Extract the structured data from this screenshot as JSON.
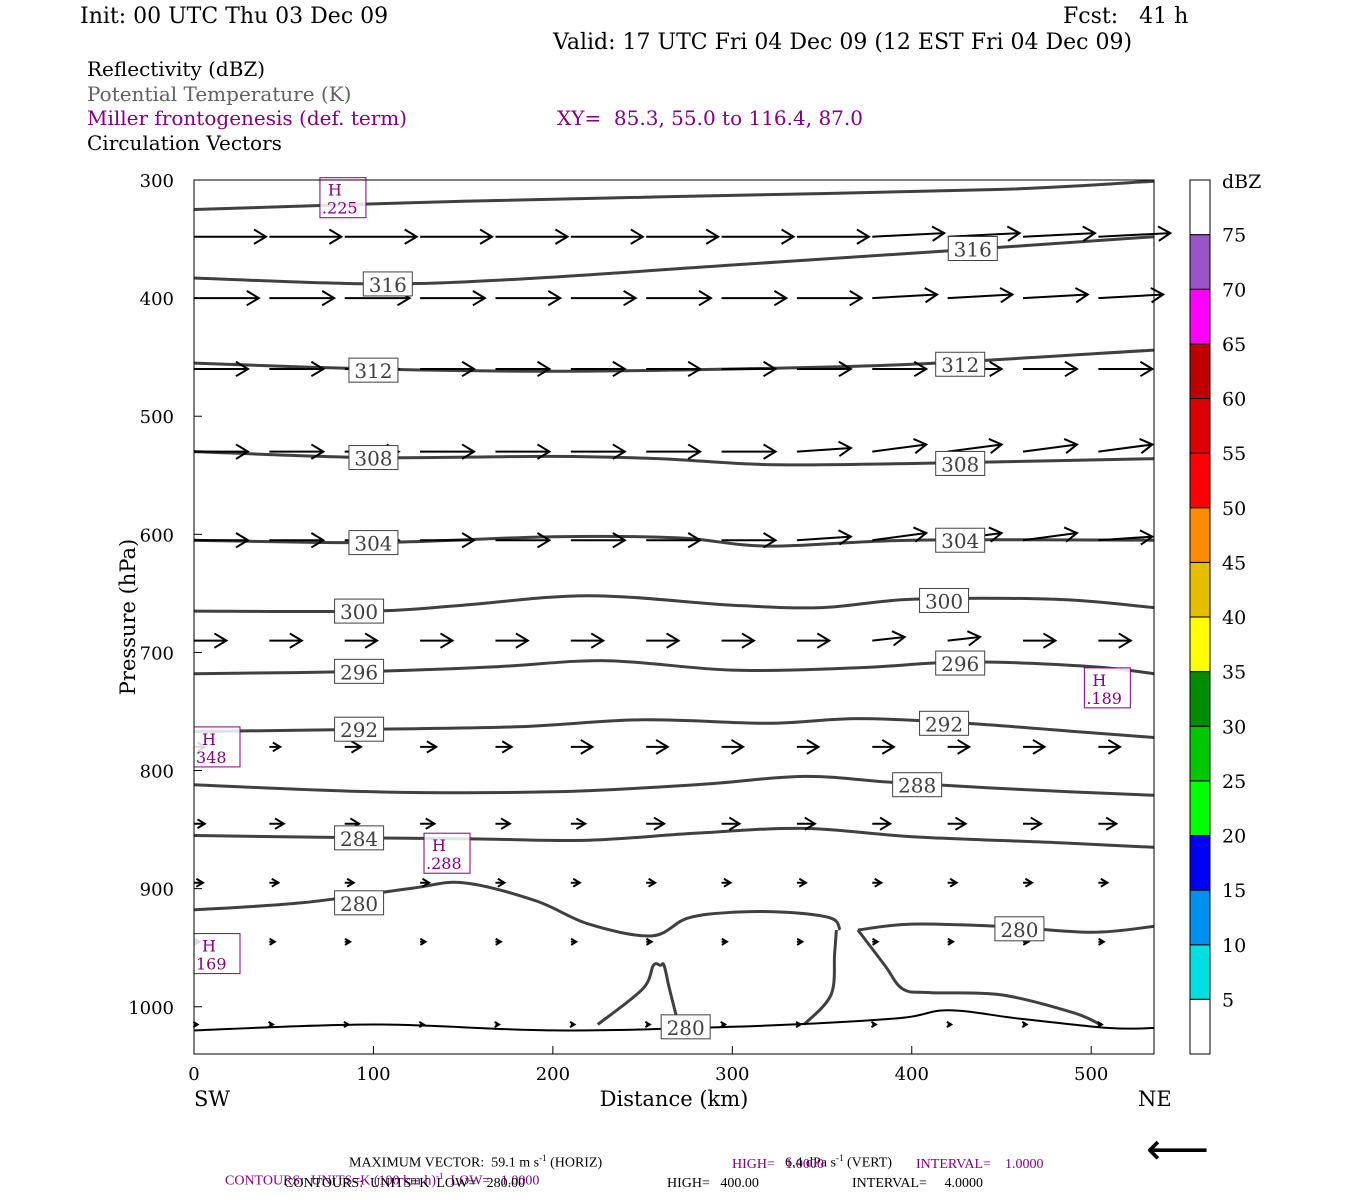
{
  "header": {
    "init": "Init: 00 UTC Thu 03 Dec 09",
    "fcst": "Fcst:   41 h",
    "valid": "Valid: 17 UTC Fri 04 Dec 09 (12 EST Fri 04 Dec 09)",
    "field1": "Reflectivity (dBZ)",
    "field2": "Potential Temperature (K)",
    "field3": "Miller frontogenesis (def. term)",
    "xy": "XY=  85.3, 55.0 to 116.4, 87.0",
    "field4": "Circulation Vectors"
  },
  "colors": {
    "theta": "#404040",
    "fronto": "#800080",
    "vector": "#000000",
    "grey_text": "#606060"
  },
  "chart_data": {
    "type": "cross-section",
    "xlabel": "Distance (km)",
    "ylabel": "Pressure (hPa)",
    "xlim": [
      0,
      535
    ],
    "ylim": [
      300,
      1040
    ],
    "x_ticks": [
      "0",
      "100",
      "200",
      "300",
      "400",
      "500"
    ],
    "y_ticks": [
      "300",
      "400",
      "500",
      "600",
      "700",
      "800",
      "900",
      "1000"
    ],
    "left_end_label": "SW",
    "right_end_label": "NE",
    "theta_contours": [
      {
        "level": 320,
        "label": "",
        "x": [
          0,
          150,
          300,
          450,
          535
        ],
        "p": [
          325,
          318,
          313,
          308,
          301
        ]
      },
      {
        "level": 316,
        "label": "316",
        "x": [
          0,
          100,
          180,
          300,
          420,
          535
        ],
        "p": [
          383,
          388,
          384,
          372,
          360,
          348
        ]
      },
      {
        "level": 312,
        "label": "312",
        "x": [
          0,
          100,
          200,
          300,
          400,
          535
        ],
        "p": [
          455,
          460,
          462,
          460,
          456,
          444
        ]
      },
      {
        "level": 308,
        "label": "308",
        "x": [
          0,
          100,
          200,
          260,
          320,
          400,
          535
        ],
        "p": [
          530,
          535,
          534,
          536,
          541,
          540,
          536
        ]
      },
      {
        "level": 304,
        "label": "304",
        "x": [
          0,
          100,
          200,
          270,
          320,
          400,
          535
        ],
        "p": [
          605,
          607,
          602,
          603,
          610,
          605,
          605
        ]
      },
      {
        "level": 300,
        "label": "300",
        "x": [
          0,
          100,
          150,
          220,
          300,
          350,
          400,
          480,
          535
        ],
        "p": [
          665,
          665,
          660,
          652,
          660,
          662,
          655,
          655,
          662
        ]
      },
      {
        "level": 296,
        "label": "296",
        "x": [
          0,
          100,
          170,
          230,
          300,
          370,
          430,
          500,
          535
        ],
        "p": [
          718,
          716,
          712,
          707,
          715,
          713,
          708,
          712,
          718
        ]
      },
      {
        "level": 292,
        "label": "292",
        "x": [
          0,
          100,
          180,
          250,
          320,
          370,
          430,
          500,
          535
        ],
        "p": [
          767,
          765,
          763,
          757,
          760,
          756,
          760,
          768,
          772
        ]
      },
      {
        "level": 288,
        "label": "288",
        "x": [
          0,
          100,
          200,
          280,
          340,
          390,
          460,
          535
        ],
        "p": [
          812,
          818,
          818,
          812,
          805,
          810,
          816,
          821
        ]
      },
      {
        "level": 284,
        "label": "284",
        "x": [
          0,
          100,
          160,
          220,
          280,
          340,
          400,
          480,
          535
        ],
        "p": [
          855,
          857,
          858,
          859,
          853,
          849,
          856,
          861,
          865
        ]
      },
      {
        "level": 280,
        "label": "280",
        "x": [
          0,
          60,
          120,
          150,
          190,
          220,
          255,
          275,
          300,
          330,
          355,
          360
        ],
        "p": [
          918,
          912,
          900,
          895,
          910,
          930,
          940,
          925,
          920,
          920,
          925,
          935
        ]
      },
      {
        "level": 280,
        "label": "280",
        "x": [
          370,
          400,
          450,
          500,
          535
        ],
        "p": [
          935,
          930,
          932,
          937,
          932
        ]
      }
    ],
    "ground_contour": {
      "x": [
        0,
        100,
        200,
        300,
        390,
        420,
        460,
        510,
        535
      ],
      "p": [
        1020,
        1015,
        1020,
        1017,
        1010,
        1003,
        1010,
        1018,
        1018
      ]
    },
    "ground_label": "280",
    "low_level_lines": [
      {
        "x": [
          225,
          250,
          256,
          260,
          262,
          265,
          270
        ],
        "p": [
          1015,
          985,
          965,
          965,
          965,
          985,
          1015
        ]
      },
      {
        "x": [
          340,
          355,
          357,
          358
        ],
        "p": [
          1015,
          990,
          955,
          935
        ]
      },
      {
        "x": [
          370,
          385,
          395,
          410,
          450,
          490,
          505
        ],
        "p": [
          935,
          965,
          985,
          988,
          990,
          1005,
          1015
        ]
      }
    ],
    "fronto_maxima": [
      {
        "letter": "H",
        "value": ".225",
        "x": 83,
        "p": 315
      },
      {
        "letter": "H",
        "value": ".189",
        "x": 509,
        "p": 730
      },
      {
        "letter": "H",
        "value": "348",
        "x": 8,
        "p": 780
      },
      {
        "letter": "H",
        "value": ".288",
        "x": 141,
        "p": 870
      },
      {
        "letter": "H",
        "value": "169",
        "x": 8,
        "p": 955
      }
    ],
    "vector_columns_x": [
      0,
      42,
      84,
      126,
      168,
      210,
      252,
      294,
      336,
      378,
      420,
      462,
      504
    ],
    "vector_rows": [
      {
        "p": 348,
        "u": [
          40,
          40,
          40,
          40,
          40,
          40,
          40,
          40,
          40,
          40,
          40,
          40,
          40
        ],
        "w": [
          0,
          0,
          0,
          0,
          0,
          0,
          0,
          0,
          0,
          -2,
          -2,
          -2,
          -2
        ]
      },
      {
        "p": 400,
        "u": [
          36,
          36,
          36,
          36,
          36,
          36,
          36,
          36,
          36,
          36,
          36,
          36,
          36
        ],
        "w": [
          0,
          0,
          0,
          0,
          0,
          0,
          0,
          0,
          0,
          -2,
          -2,
          -2,
          -2
        ]
      },
      {
        "p": 460,
        "u": [
          30,
          30,
          30,
          30,
          30,
          30,
          30,
          30,
          30,
          30,
          30,
          30,
          30
        ],
        "w": [
          0,
          0,
          0,
          0,
          0,
          0,
          0,
          0,
          0,
          0,
          0,
          0,
          0
        ]
      },
      {
        "p": 530,
        "u": [
          30,
          30,
          30,
          30,
          30,
          30,
          30,
          30,
          30,
          30,
          30,
          30,
          30
        ],
        "w": [
          0,
          0,
          0,
          0,
          0,
          0,
          0,
          0,
          -2,
          -4,
          -4,
          -4,
          -4
        ]
      },
      {
        "p": 605,
        "u": [
          30,
          30,
          30,
          30,
          30,
          30,
          30,
          30,
          30,
          30,
          30,
          30,
          30
        ],
        "w": [
          0,
          0,
          0,
          0,
          0,
          0,
          0,
          0,
          -2,
          -4,
          -4,
          -4,
          -2
        ]
      },
      {
        "p": 690,
        "u": [
          18,
          18,
          18,
          18,
          18,
          18,
          18,
          18,
          18,
          18,
          18,
          18,
          18
        ],
        "w": [
          0,
          0,
          0,
          0,
          0,
          0,
          0,
          0,
          0,
          -2,
          -2,
          0,
          0
        ]
      },
      {
        "p": 780,
        "u": [
          6,
          6,
          9,
          9,
          9,
          12,
          12,
          12,
          12,
          12,
          12,
          12,
          12
        ],
        "w": [
          0,
          0,
          0,
          0,
          0,
          0,
          0,
          0,
          0,
          0,
          0,
          0,
          0
        ]
      },
      {
        "p": 845,
        "u": [
          6,
          8,
          8,
          8,
          8,
          8,
          10,
          10,
          10,
          10,
          10,
          10,
          10
        ],
        "w": [
          0,
          0,
          0,
          0,
          0,
          0,
          0,
          0,
          0,
          0,
          0,
          0,
          0
        ]
      },
      {
        "p": 895,
        "u": [
          5,
          5,
          5,
          5,
          5,
          5,
          5,
          5,
          5,
          5,
          5,
          5,
          5
        ],
        "w": [
          0,
          0,
          0,
          0,
          0,
          0,
          0,
          0,
          0,
          0,
          0,
          0,
          0
        ]
      },
      {
        "p": 945,
        "u": [
          3,
          3,
          3,
          3,
          3,
          3,
          3,
          3,
          3,
          3,
          3,
          3,
          3
        ],
        "w": [
          0,
          0,
          0,
          0,
          0,
          0,
          0,
          0,
          0,
          0,
          0,
          0,
          0
        ]
      },
      {
        "p": 1015,
        "u": [
          2,
          2,
          2,
          2,
          2,
          2,
          2,
          2,
          2,
          2,
          2,
          2,
          2
        ],
        "w": [
          0,
          0,
          0,
          0,
          0,
          0,
          0,
          0,
          0,
          0,
          0,
          0,
          0
        ]
      }
    ],
    "colorbar": {
      "unit": "dBZ",
      "labels": [
        "5",
        "10",
        "15",
        "20",
        "25",
        "30",
        "35",
        "40",
        "45",
        "50",
        "55",
        "60",
        "65",
        "70",
        "75"
      ],
      "colors": [
        "#00e0e0",
        "#0090f0",
        "#0000f0",
        "#00ff00",
        "#00c800",
        "#008c00",
        "#ffff00",
        "#e6be00",
        "#ff8c00",
        "#ff0000",
        "#dc0000",
        "#be0000",
        "#ff00ff",
        "#9955c8",
        "#ffffff"
      ]
    },
    "reference_vector_arrow": "⟵",
    "footer": {
      "max_vector": "MAXIMUM VECTOR:  59.1 m s",
      "max_vector_exp": "-1",
      "horiz": " (HORIZ)",
      "vert_val": "6.4 dPa s",
      "vert_exp": "-1",
      "vert": " (VERT)",
      "fronto_units_a": "CONTOURS:  UNITS=K (100 km h)",
      "fronto_units_exp": "-1",
      "fronto_units_b": "  LOW=   1.0000",
      "fronto_high": "HIGH=   1.0000",
      "fronto_interval": "INTERVAL=    1.0000",
      "theta_units": "CONTOURS:  UNITS=K  LOW=   280.00",
      "theta_high": "HIGH=   400.00",
      "theta_interval": "INTERVAL=     4.0000"
    }
  }
}
